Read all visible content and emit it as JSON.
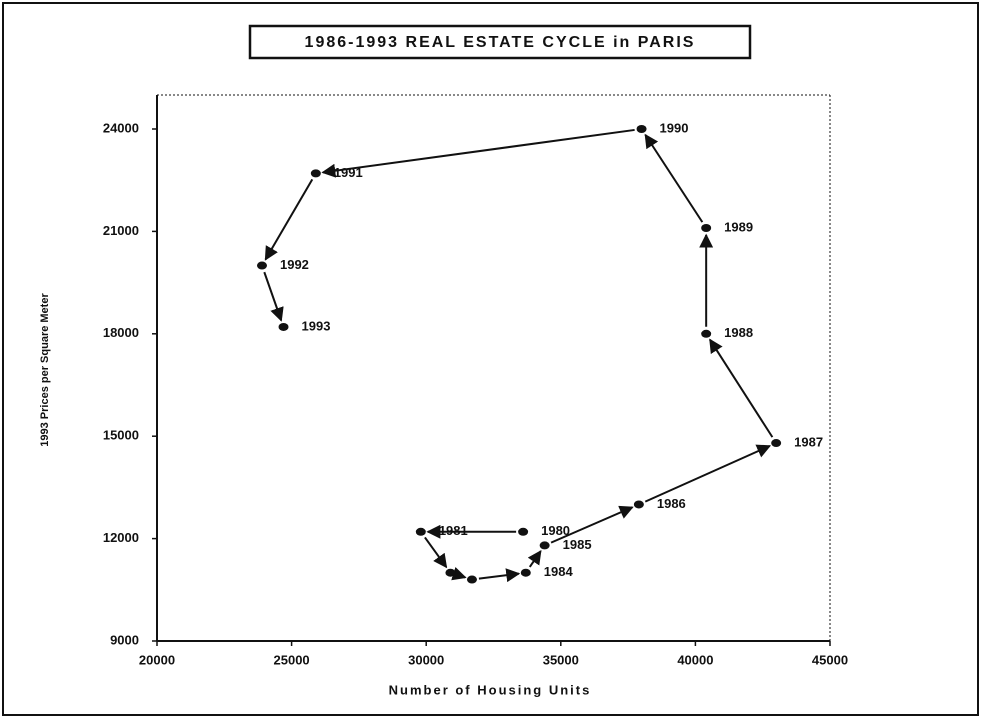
{
  "chart_data": {
    "type": "scatter",
    "title": "1986-1993 REAL ESTATE CYCLE in PARIS",
    "x_label": "Number of Housing Units",
    "y_label": "1993 Prices per Square Meter",
    "color": "#111111",
    "x": [
      33600,
      29800,
      30900,
      31700,
      33700,
      34400,
      37900,
      43000,
      40400,
      40400,
      38000,
      25900,
      23900,
      24700
    ],
    "values": [
      12200,
      12200,
      11000,
      10800,
      11000,
      11800,
      13000,
      14800,
      18000,
      21100,
      24000,
      22700,
      20000,
      18200
    ],
    "point_labels": [
      "1980",
      "1981",
      null,
      null,
      "1984",
      "1985",
      "1986",
      "1987",
      "1988",
      "1989",
      "1990",
      "1991",
      "1992",
      "1993"
    ],
    "xlim": [
      20000,
      45000
    ],
    "xticks": [
      20000,
      25000,
      30000,
      35000,
      40000,
      45000
    ],
    "ylim": [
      9000,
      24000
    ],
    "yticks": [
      9000,
      12000,
      15000,
      18000,
      21000,
      24000
    ]
  }
}
